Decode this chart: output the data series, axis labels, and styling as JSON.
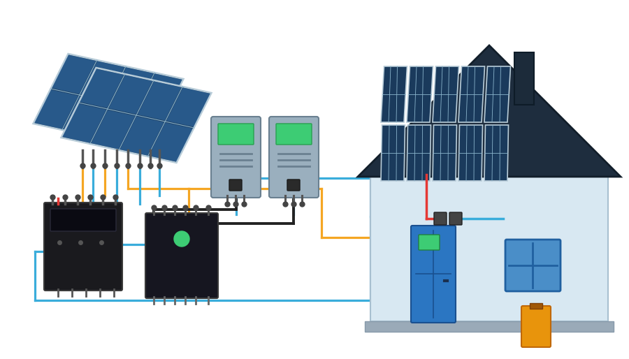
{
  "bg_color": "#ffffff",
  "blue": "#3aaddb",
  "orange": "#f5a623",
  "black": "#222222",
  "red": "#e53935",
  "panel_dark": "#1a3a5c",
  "panel_mid": "#2a5a8c",
  "panel_light": "#3a7fc4",
  "panel_frame": "#b8ccd8",
  "panel_line": "#8ab4cc",
  "device_dark": "#1a1a1e",
  "device_gray": "#7a8fa0",
  "device_gray2": "#9aafbe",
  "green_ind": "#3dcc74",
  "house_wall": "#d8e8f2",
  "house_wall2": "#c8dcea",
  "house_roof": "#1e2d3e",
  "house_door": "#2b76c2",
  "house_win": "#4a8ec8",
  "battery_orange": "#e8940c",
  "ground": "#9aaab8",
  "connector_dark": "#444444"
}
